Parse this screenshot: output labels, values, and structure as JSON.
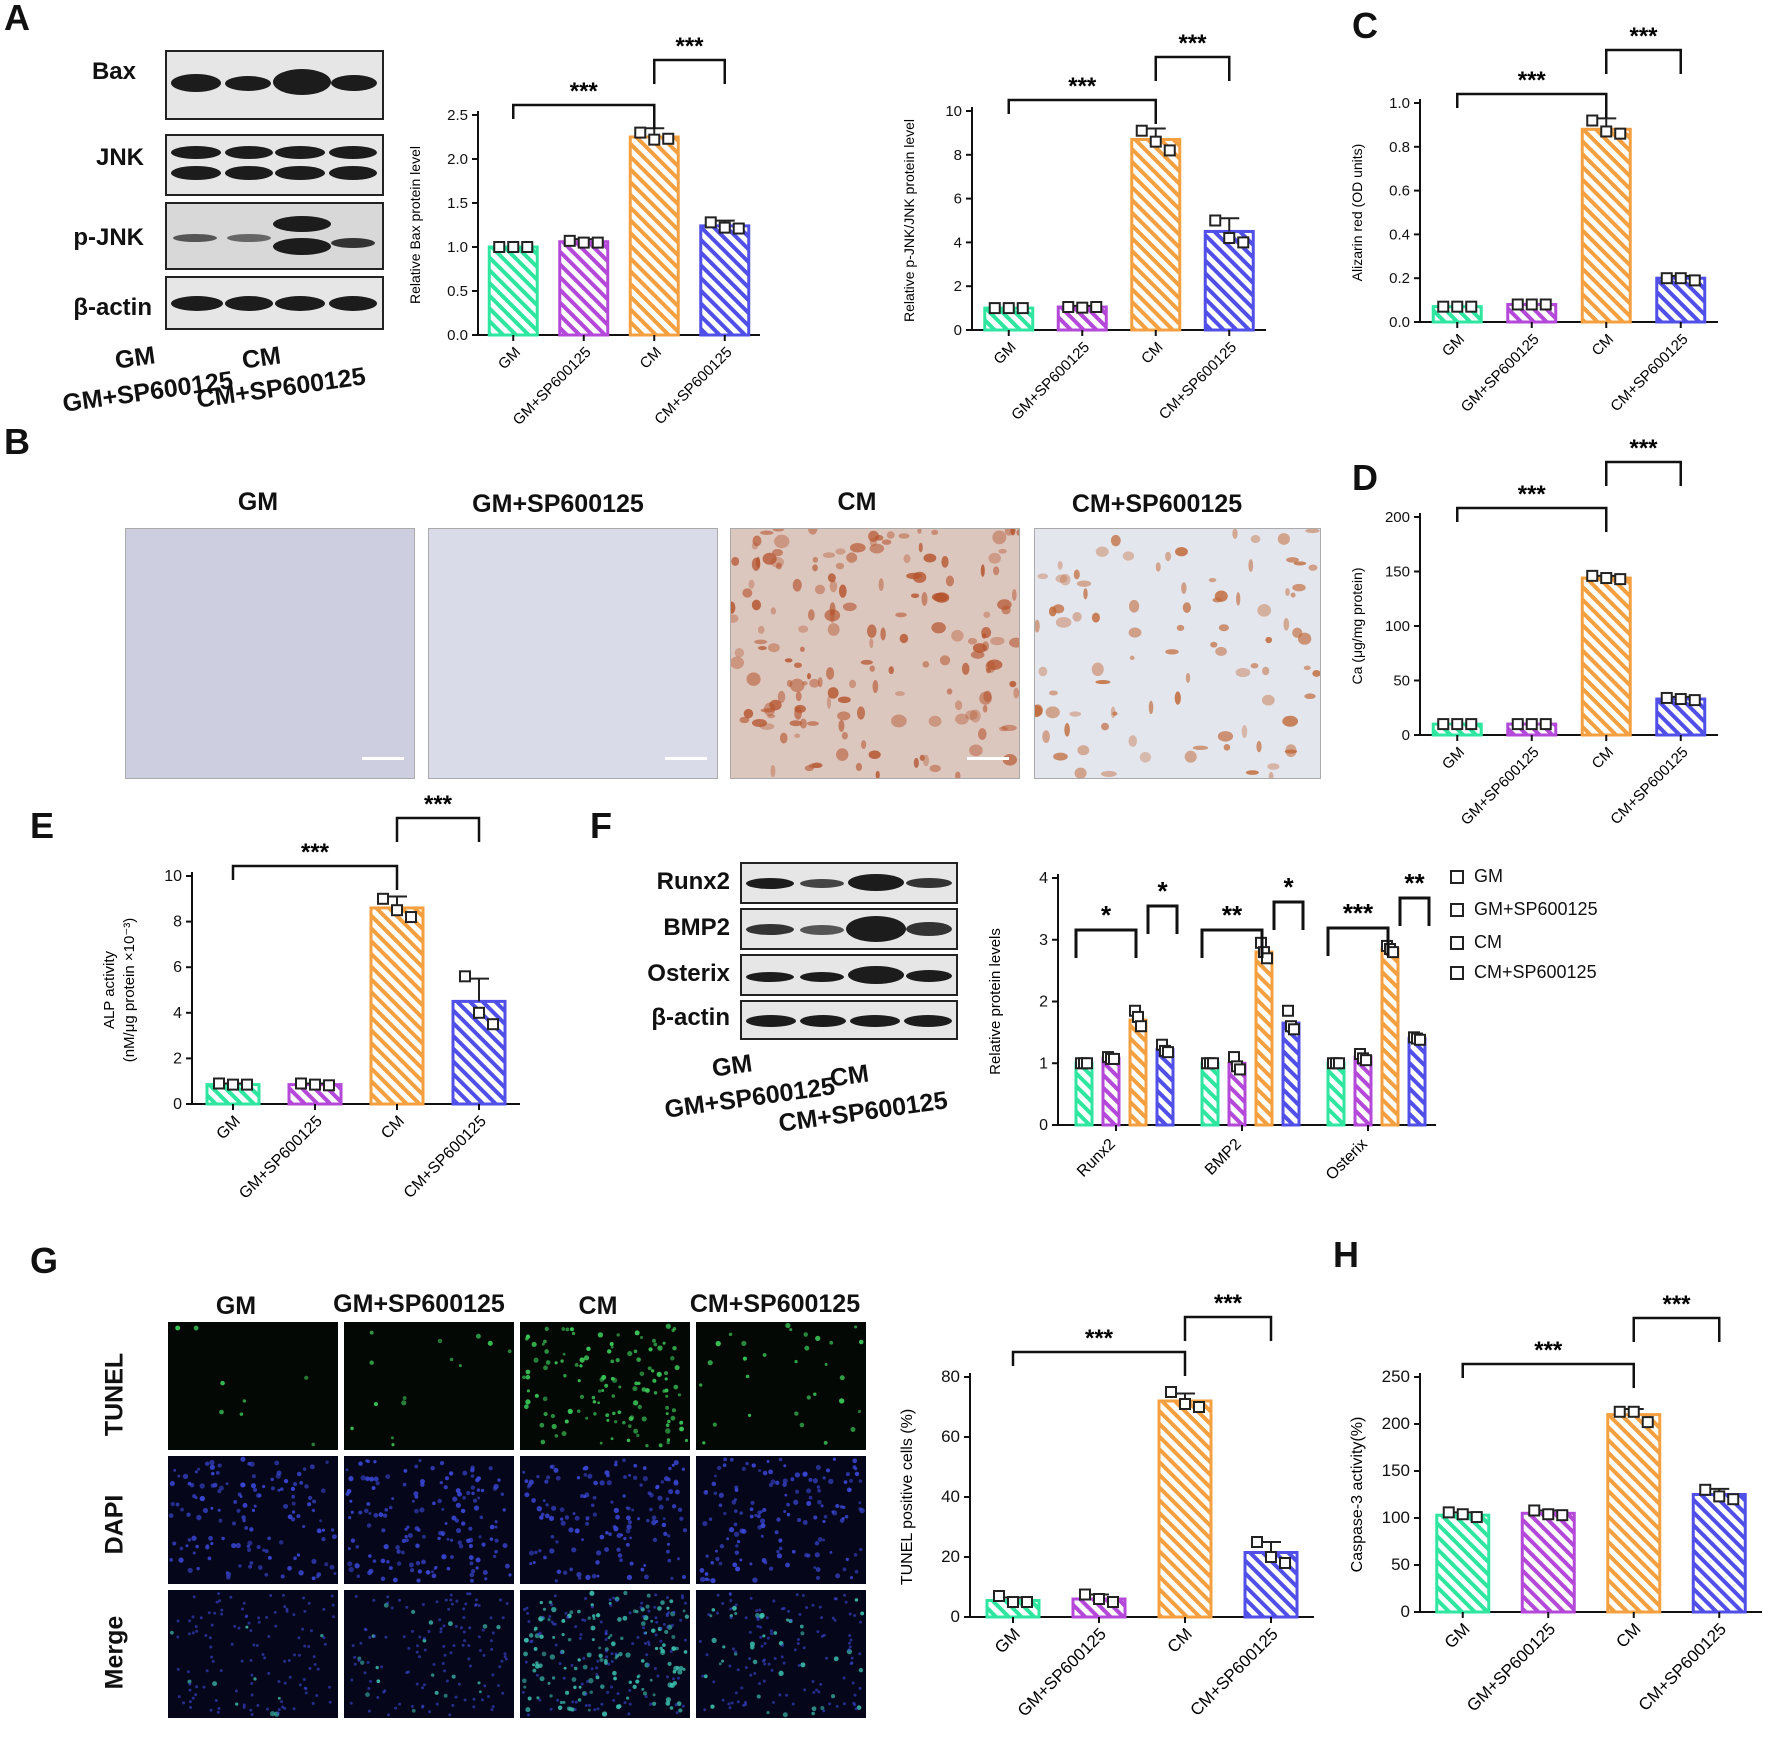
{
  "panels": {
    "A": {
      "letter": "A",
      "blot_labels": [
        "Bax",
        "JNK",
        "p-JNK",
        "β-actin"
      ],
      "group_labels": [
        "GM",
        "GM+SP600125",
        "CM",
        "CM+SP600125"
      ]
    },
    "B": {
      "letter": "B",
      "image_titles": [
        "GM",
        "GM+SP600125",
        "CM",
        "CM+SP600125"
      ]
    },
    "C": {
      "letter": "C"
    },
    "D": {
      "letter": "D"
    },
    "E": {
      "letter": "E"
    },
    "F": {
      "letter": "F",
      "blot_labels": [
        "Runx2",
        "BMP2",
        "Osterix",
        "β-actin"
      ],
      "group_labels": [
        "GM",
        "GM+SP600125",
        "CM",
        "CM+SP600125"
      ],
      "legend": [
        "GM",
        "GM+SP600125",
        "CM",
        "CM+SP600125"
      ]
    },
    "G": {
      "letter": "G",
      "image_titles": [
        "GM",
        "GM+SP600125",
        "CM",
        "CM+SP600125"
      ],
      "row_labels": [
        "TUNEL",
        "DAPI",
        "Merge"
      ]
    },
    "H": {
      "letter": "H"
    }
  },
  "colors": {
    "GM": "#2ee6a0",
    "GM+SP600125": "#b448d8",
    "CM": "#f5a040",
    "CM+SP600125": "#5050e8",
    "axis": "#111111"
  },
  "chart_data": [
    {
      "id": "A-bax",
      "type": "bar",
      "categories": [
        "GM",
        "GM+SP600125",
        "CM",
        "CM+SP600125"
      ],
      "values": [
        1.0,
        1.06,
        2.25,
        1.24
      ],
      "errors": [
        0.0,
        0.03,
        0.1,
        0.06
      ],
      "points": [
        [
          1.0,
          1.0,
          1.0
        ],
        [
          1.07,
          1.05,
          1.05
        ],
        [
          2.3,
          2.22,
          2.23
        ],
        [
          1.28,
          1.22,
          1.21
        ]
      ],
      "ylabel": "Relative Bax protein level",
      "ylim": [
        0,
        2.5
      ],
      "yticks": [
        "0.0",
        "0.5",
        "1.0",
        "1.5",
        "2.0",
        "2.5"
      ],
      "significance": [
        {
          "from": 0,
          "to": 2,
          "label": "***"
        },
        {
          "from": 2,
          "to": 3,
          "label": "***"
        }
      ]
    },
    {
      "id": "A-pjnk",
      "type": "bar",
      "categories": [
        "GM",
        "GM+SP600125",
        "CM",
        "CM+SP600125"
      ],
      "values": [
        1.0,
        1.05,
        8.7,
        4.5
      ],
      "errors": [
        0.0,
        0.05,
        0.5,
        0.6
      ],
      "points": [
        [
          1.0,
          1.0,
          1.0
        ],
        [
          1.05,
          1.02,
          1.05
        ],
        [
          9.1,
          8.6,
          8.2
        ],
        [
          5.0,
          4.2,
          4.0
        ]
      ],
      "ylabel": "Relative p-JNK/JNK protein level",
      "ylim": [
        0,
        10
      ],
      "yticks": [
        "0",
        "2",
        "4",
        "6",
        "8",
        "10"
      ],
      "significance": [
        {
          "from": 0,
          "to": 2,
          "label": "***"
        },
        {
          "from": 2,
          "to": 3,
          "label": "***"
        }
      ]
    },
    {
      "id": "C",
      "type": "bar",
      "categories": [
        "GM",
        "GM+SP600125",
        "CM",
        "CM+SP600125"
      ],
      "values": [
        0.07,
        0.08,
        0.88,
        0.2
      ],
      "errors": [
        0.0,
        0.0,
        0.05,
        0.01
      ],
      "points": [
        [
          0.07,
          0.07,
          0.07
        ],
        [
          0.08,
          0.08,
          0.08
        ],
        [
          0.92,
          0.87,
          0.86
        ],
        [
          0.2,
          0.2,
          0.19
        ]
      ],
      "ylabel": "Alizarin red (OD units)",
      "ylim": [
        0,
        1.0
      ],
      "yticks": [
        "0.0",
        "0.2",
        "0.4",
        "0.6",
        "0.8",
        "1.0"
      ],
      "significance": [
        {
          "from": 0,
          "to": 2,
          "label": "***"
        },
        {
          "from": 2,
          "to": 3,
          "label": "***"
        }
      ]
    },
    {
      "id": "D",
      "type": "bar",
      "categories": [
        "GM",
        "GM+SP600125",
        "CM",
        "CM+SP600125"
      ],
      "values": [
        10,
        10,
        144,
        33
      ],
      "errors": [
        0,
        0,
        2,
        2
      ],
      "points": [
        [
          10,
          10,
          10
        ],
        [
          10,
          10,
          10
        ],
        [
          146,
          144,
          143
        ],
        [
          34,
          33,
          32
        ]
      ],
      "ylabel": "Ca (μg/mg protein)",
      "ylim": [
        0,
        200
      ],
      "yticks": [
        "0",
        "50",
        "100",
        "150",
        "200"
      ],
      "significance": [
        {
          "from": 0,
          "to": 2,
          "label": "***"
        },
        {
          "from": 2,
          "to": 3,
          "label": "***"
        }
      ]
    },
    {
      "id": "E",
      "type": "bar",
      "categories": [
        "GM",
        "GM+SP600125",
        "CM",
        "CM+SP600125"
      ],
      "values": [
        0.85,
        0.85,
        8.6,
        4.5
      ],
      "errors": [
        0.05,
        0.05,
        0.5,
        1.0
      ],
      "points": [
        [
          0.9,
          0.85,
          0.85
        ],
        [
          0.9,
          0.85,
          0.82
        ],
        [
          9.0,
          8.5,
          8.2
        ],
        [
          5.6,
          4.0,
          3.5
        ]
      ],
      "ylabel": "ALP activity",
      "ylabel2": "(nM/μg protein ×10⁻³)",
      "ylim": [
        0,
        10
      ],
      "yticks": [
        "0",
        "2",
        "4",
        "6",
        "8",
        "10"
      ],
      "significance": [
        {
          "from": 0,
          "to": 2,
          "label": "***"
        },
        {
          "from": 2,
          "to": 3,
          "label": "***"
        }
      ]
    },
    {
      "id": "F",
      "type": "bar",
      "grouped": true,
      "categories": [
        "Runx2",
        "BMP2",
        "Osterix"
      ],
      "series": [
        {
          "name": "GM",
          "values": [
            1.0,
            1.0,
            1.0
          ],
          "points": [
            [
              1.0,
              1.0,
              1.0
            ],
            [
              1.0,
              1.0,
              1.0
            ],
            [
              1.0,
              1.0,
              1.0
            ]
          ]
        },
        {
          "name": "GM+SP600125",
          "values": [
            1.08,
            1.0,
            1.1
          ],
          "points": [
            [
              1.1,
              1.07,
              1.07
            ],
            [
              1.1,
              0.95,
              0.9
            ],
            [
              1.15,
              1.08,
              1.05
            ]
          ]
        },
        {
          "name": "CM",
          "values": [
            1.7,
            2.8,
            2.85
          ],
          "points": [
            [
              1.85,
              1.75,
              1.6
            ],
            [
              2.95,
              2.8,
              2.7
            ],
            [
              2.9,
              2.85,
              2.8
            ]
          ]
        },
        {
          "name": "CM+SP600125",
          "values": [
            1.22,
            1.65,
            1.4
          ],
          "points": [
            [
              1.3,
              1.2,
              1.18
            ],
            [
              1.85,
              1.6,
              1.55
            ],
            [
              1.42,
              1.4,
              1.38
            ]
          ]
        }
      ],
      "ylabel": "Relative protein levels",
      "ylim": [
        0,
        4
      ],
      "yticks": [
        "0",
        "1",
        "2",
        "3",
        "4"
      ],
      "significance": [
        {
          "group": 0,
          "from": 0,
          "to": 2,
          "label": "*"
        },
        {
          "group": 0,
          "from": 2,
          "to": 3,
          "label": "*"
        },
        {
          "group": 1,
          "from": 0,
          "to": 2,
          "label": "**"
        },
        {
          "group": 1,
          "from": 2,
          "to": 3,
          "label": "*"
        },
        {
          "group": 2,
          "from": 0,
          "to": 2,
          "label": "***"
        },
        {
          "group": 2,
          "from": 2,
          "to": 3,
          "label": "**"
        }
      ]
    },
    {
      "id": "G",
      "type": "bar",
      "categories": [
        "GM",
        "GM+SP600125",
        "CM",
        "CM+SP600125"
      ],
      "values": [
        5.5,
        6,
        72,
        21.5
      ],
      "errors": [
        1,
        1.5,
        2.5,
        3.5
      ],
      "points": [
        [
          7,
          5,
          5
        ],
        [
          7.5,
          6,
          5
        ],
        [
          75,
          71,
          70
        ],
        [
          25,
          20,
          18
        ]
      ],
      "ylabel": "TUNEL positive cells (%)",
      "ylim": [
        0,
        80
      ],
      "yticks": [
        "0",
        "20",
        "40",
        "60",
        "80"
      ],
      "significance": [
        {
          "from": 0,
          "to": 2,
          "label": "***"
        },
        {
          "from": 2,
          "to": 3,
          "label": "***"
        }
      ]
    },
    {
      "id": "H",
      "type": "bar",
      "categories": [
        "GM",
        "GM+SP600125",
        "CM",
        "CM+SP600125"
      ],
      "values": [
        103,
        105,
        210,
        125
      ],
      "errors": [
        3,
        3,
        6,
        6
      ],
      "points": [
        [
          106,
          104,
          101
        ],
        [
          108,
          104,
          103
        ],
        [
          213,
          213,
          202
        ],
        [
          130,
          123,
          120
        ]
      ],
      "ylabel": "Caspase-3 activity(%)",
      "ylim": [
        0,
        250
      ],
      "yticks": [
        "0",
        "50",
        "100",
        "150",
        "200",
        "250"
      ],
      "significance": [
        {
          "from": 0,
          "to": 2,
          "label": "***"
        },
        {
          "from": 2,
          "to": 3,
          "label": "***"
        }
      ]
    }
  ]
}
